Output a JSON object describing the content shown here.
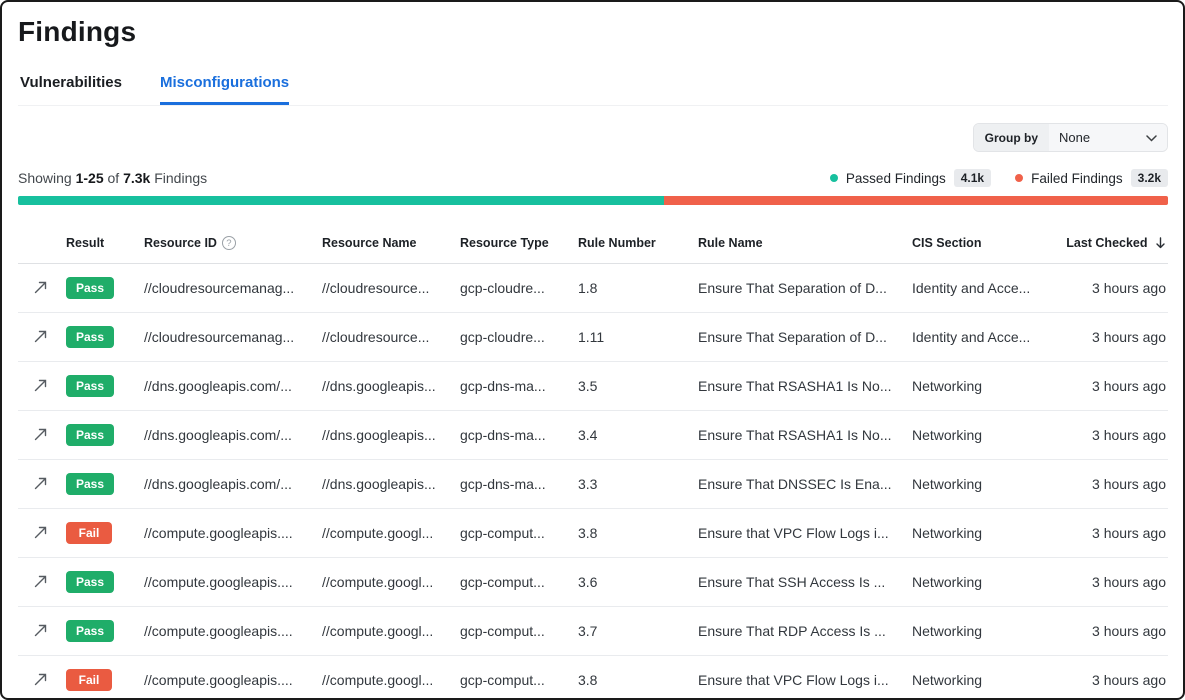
{
  "page": {
    "title": "Findings"
  },
  "tabs": [
    {
      "label": "Vulnerabilities",
      "active": false
    },
    {
      "label": "Misconfigurations",
      "active": true
    }
  ],
  "toolbar": {
    "group_by_label": "Group by",
    "group_by_value": "None"
  },
  "summary": {
    "prefix": "Showing",
    "range": "1-25",
    "of": "of",
    "total": "7.3k",
    "suffix": "Findings"
  },
  "legend": {
    "passed": {
      "label": "Passed Findings",
      "count": "4.1k",
      "color": "#17c09e"
    },
    "failed": {
      "label": "Failed Findings",
      "count": "3.2k",
      "color": "#f0614a"
    }
  },
  "colors": {
    "accent": "#1a6fdd",
    "pass_badge": "#1fad69",
    "fail_badge": "#ea5b41",
    "passed_bar": "#17c09e",
    "failed_bar": "#f0614a"
  },
  "chart_data": {
    "type": "bar",
    "stacked": true,
    "title": "Findings pass/fail distribution",
    "series": [
      {
        "name": "Passed Findings",
        "value": 4100,
        "color": "#17c09e"
      },
      {
        "name": "Failed Findings",
        "value": 3200,
        "color": "#f0614a"
      }
    ],
    "total_label": "7.3k"
  },
  "table": {
    "headers": [
      "Result",
      "Resource ID",
      "Resource Name",
      "Resource Type",
      "Rule Number",
      "Rule Name",
      "CIS Section",
      "Last Checked"
    ],
    "rows": [
      {
        "result": "Pass",
        "resource_id": "//cloudresourcemanag...",
        "resource_name": "//cloudresource...",
        "resource_type": "gcp-cloudre...",
        "rule_number": "1.8",
        "rule_name": "Ensure That Separation of D...",
        "cis_section": "Identity and Acce...",
        "last_checked": "3 hours ago"
      },
      {
        "result": "Pass",
        "resource_id": "//cloudresourcemanag...",
        "resource_name": "//cloudresource...",
        "resource_type": "gcp-cloudre...",
        "rule_number": "1.11",
        "rule_name": "Ensure That Separation of D...",
        "cis_section": "Identity and Acce...",
        "last_checked": "3 hours ago"
      },
      {
        "result": "Pass",
        "resource_id": "//dns.googleapis.com/...",
        "resource_name": "//dns.googleapis...",
        "resource_type": "gcp-dns-ma...",
        "rule_number": "3.5",
        "rule_name": "Ensure That RSASHA1 Is No...",
        "cis_section": "Networking",
        "last_checked": "3 hours ago"
      },
      {
        "result": "Pass",
        "resource_id": "//dns.googleapis.com/...",
        "resource_name": "//dns.googleapis...",
        "resource_type": "gcp-dns-ma...",
        "rule_number": "3.4",
        "rule_name": "Ensure That RSASHA1 Is No...",
        "cis_section": "Networking",
        "last_checked": "3 hours ago"
      },
      {
        "result": "Pass",
        "resource_id": "//dns.googleapis.com/...",
        "resource_name": "//dns.googleapis...",
        "resource_type": "gcp-dns-ma...",
        "rule_number": "3.3",
        "rule_name": "Ensure That DNSSEC Is Ena...",
        "cis_section": "Networking",
        "last_checked": "3 hours ago"
      },
      {
        "result": "Fail",
        "resource_id": "//compute.googleapis....",
        "resource_name": "//compute.googl...",
        "resource_type": "gcp-comput...",
        "rule_number": "3.8",
        "rule_name": "Ensure that VPC Flow Logs i...",
        "cis_section": "Networking",
        "last_checked": "3 hours ago"
      },
      {
        "result": "Pass",
        "resource_id": "//compute.googleapis....",
        "resource_name": "//compute.googl...",
        "resource_type": "gcp-comput...",
        "rule_number": "3.6",
        "rule_name": "Ensure That SSH Access Is ...",
        "cis_section": "Networking",
        "last_checked": "3 hours ago"
      },
      {
        "result": "Pass",
        "resource_id": "//compute.googleapis....",
        "resource_name": "//compute.googl...",
        "resource_type": "gcp-comput...",
        "rule_number": "3.7",
        "rule_name": "Ensure That RDP Access Is ...",
        "cis_section": "Networking",
        "last_checked": "3 hours ago"
      },
      {
        "result": "Fail",
        "resource_id": "//compute.googleapis....",
        "resource_name": "//compute.googl...",
        "resource_type": "gcp-comput...",
        "rule_number": "3.8",
        "rule_name": "Ensure that VPC Flow Logs i...",
        "cis_section": "Networking",
        "last_checked": "3 hours ago"
      }
    ]
  }
}
